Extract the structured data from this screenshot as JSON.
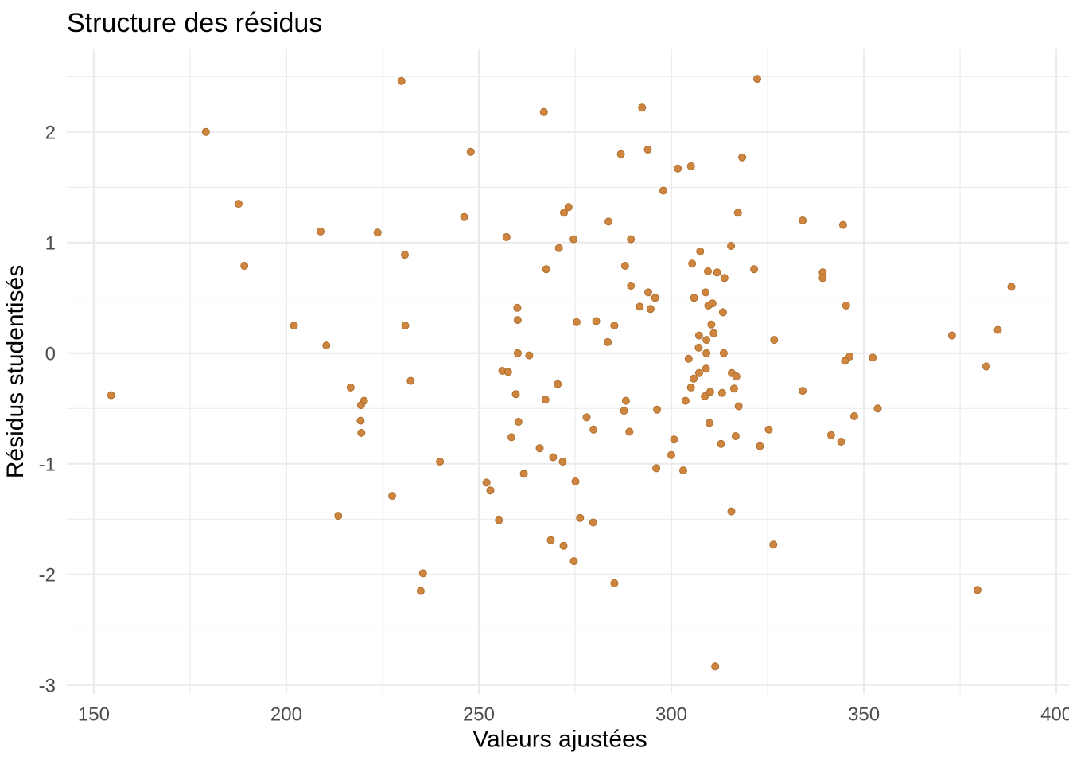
{
  "chart_data": {
    "type": "scatter",
    "title": "Structure des résidus",
    "xlabel": "Valeurs ajustées",
    "ylabel": "Résidus studentisés",
    "x_ticks": [
      150,
      200,
      250,
      300,
      350,
      400
    ],
    "x_minor_ticks": [
      175,
      225,
      275,
      325,
      375
    ],
    "y_ticks": [
      2,
      1,
      0,
      -1,
      -2,
      -3
    ],
    "y_minor_ticks": [
      2.5,
      1.5,
      0.5,
      -0.5,
      -1.5,
      -2.5
    ],
    "xlim": [
      143.0,
      403.3
    ],
    "ylim": [
      -3.08,
      2.75
    ],
    "grid": "on",
    "legend": "none",
    "point_color": "#CD853F",
    "point_edge_color": "#B06F2C",
    "grid_color": "#EBEBEB",
    "tick_label_color": "#4D4D4D",
    "title_color": "#000000",
    "axis_label_color": "#000000",
    "background_color": "#FFFFFF",
    "points": [
      [
        179.1,
        2.0
      ],
      [
        187.6,
        1.35
      ],
      [
        229.9,
        2.46
      ],
      [
        266.9,
        2.18
      ],
      [
        247.9,
        1.82
      ],
      [
        322.3,
        2.48
      ],
      [
        292.4,
        2.22
      ],
      [
        286.9,
        1.8
      ],
      [
        293.9,
        1.84
      ],
      [
        301.7,
        1.67
      ],
      [
        305.1,
        1.69
      ],
      [
        318.4,
        1.77
      ],
      [
        297.9,
        1.47
      ],
      [
        208.9,
        1.1
      ],
      [
        189.1,
        0.79
      ],
      [
        202.0,
        0.25
      ],
      [
        210.4,
        0.07
      ],
      [
        246.2,
        1.23
      ],
      [
        223.7,
        1.09
      ],
      [
        257.2,
        1.05
      ],
      [
        272.1,
        1.27
      ],
      [
        273.3,
        1.32
      ],
      [
        274.6,
        1.03
      ],
      [
        270.8,
        0.95
      ],
      [
        267.5,
        0.76
      ],
      [
        230.8,
        0.89
      ],
      [
        260.0,
        0.41
      ],
      [
        260.1,
        0.3
      ],
      [
        230.9,
        0.25
      ],
      [
        275.4,
        0.28
      ],
      [
        280.5,
        0.29
      ],
      [
        260.1,
        0.0
      ],
      [
        263.1,
        -0.02
      ],
      [
        317.3,
        1.27
      ],
      [
        283.7,
        1.19
      ],
      [
        334.1,
        1.2
      ],
      [
        344.6,
        1.16
      ],
      [
        289.5,
        1.03
      ],
      [
        315.5,
        0.97
      ],
      [
        307.5,
        0.92
      ],
      [
        305.4,
        0.81
      ],
      [
        288.0,
        0.79
      ],
      [
        309.5,
        0.74
      ],
      [
        311.9,
        0.73
      ],
      [
        313.8,
        0.68
      ],
      [
        321.5,
        0.76
      ],
      [
        339.3,
        0.73
      ],
      [
        339.3,
        0.68
      ],
      [
        289.5,
        0.61
      ],
      [
        294.0,
        0.55
      ],
      [
        295.8,
        0.5
      ],
      [
        308.9,
        0.55
      ],
      [
        305.9,
        0.5
      ],
      [
        291.8,
        0.42
      ],
      [
        294.6,
        0.4
      ],
      [
        309.6,
        0.43
      ],
      [
        310.7,
        0.45
      ],
      [
        313.4,
        0.37
      ],
      [
        345.4,
        0.43
      ],
      [
        285.2,
        0.25
      ],
      [
        310.4,
        0.26
      ],
      [
        311.0,
        0.18
      ],
      [
        283.5,
        0.1
      ],
      [
        307.2,
        0.16
      ],
      [
        309.1,
        0.12
      ],
      [
        326.7,
        0.12
      ],
      [
        307.1,
        0.05
      ],
      [
        309.1,
        0.0
      ],
      [
        313.6,
        0.0
      ],
      [
        304.5,
        -0.05
      ],
      [
        346.3,
        -0.03
      ],
      [
        345.1,
        -0.07
      ],
      [
        309.0,
        -0.14
      ],
      [
        307.2,
        -0.18
      ],
      [
        305.8,
        -0.23
      ],
      [
        315.7,
        -0.18
      ],
      [
        316.9,
        -0.21
      ],
      [
        388.3,
        0.6
      ],
      [
        372.9,
        0.16
      ],
      [
        384.8,
        0.21
      ],
      [
        352.3,
        -0.04
      ],
      [
        381.8,
        -0.12
      ],
      [
        154.5,
        -0.38
      ],
      [
        216.7,
        -0.31
      ],
      [
        232.3,
        -0.25
      ],
      [
        220.2,
        -0.43
      ],
      [
        219.4,
        -0.47
      ],
      [
        219.3,
        -0.61
      ],
      [
        219.5,
        -0.72
      ],
      [
        256.1,
        -0.16
      ],
      [
        257.6,
        -0.17
      ],
      [
        259.6,
        -0.37
      ],
      [
        270.5,
        -0.28
      ],
      [
        267.3,
        -0.42
      ],
      [
        260.3,
        -0.62
      ],
      [
        258.5,
        -0.76
      ],
      [
        278.0,
        -0.58
      ],
      [
        279.8,
        -0.69
      ],
      [
        265.8,
        -0.86
      ],
      [
        269.3,
        -0.94
      ],
      [
        271.8,
        -0.98
      ],
      [
        239.9,
        -0.98
      ],
      [
        261.7,
        -1.09
      ],
      [
        252.0,
        -1.17
      ],
      [
        253.0,
        -1.24
      ],
      [
        275.1,
        -1.16
      ],
      [
        227.5,
        -1.29
      ],
      [
        213.5,
        -1.47
      ],
      [
        255.2,
        -1.51
      ],
      [
        276.3,
        -1.49
      ],
      [
        279.7,
        -1.53
      ],
      [
        305.1,
        -0.31
      ],
      [
        303.7,
        -0.43
      ],
      [
        308.7,
        -0.39
      ],
      [
        310.1,
        -0.35
      ],
      [
        313.2,
        -0.36
      ],
      [
        316.3,
        -0.32
      ],
      [
        334.1,
        -0.34
      ],
      [
        288.2,
        -0.43
      ],
      [
        287.7,
        -0.52
      ],
      [
        296.3,
        -0.51
      ],
      [
        317.5,
        -0.48
      ],
      [
        347.5,
        -0.57
      ],
      [
        289.1,
        -0.71
      ],
      [
        309.9,
        -0.63
      ],
      [
        325.3,
        -0.69
      ],
      [
        316.7,
        -0.75
      ],
      [
        341.5,
        -0.74
      ],
      [
        344.1,
        -0.8
      ],
      [
        312.9,
        -0.82
      ],
      [
        323.0,
        -0.84
      ],
      [
        300.7,
        -0.78
      ],
      [
        300.0,
        -0.92
      ],
      [
        296.1,
        -1.04
      ],
      [
        303.1,
        -1.06
      ],
      [
        315.6,
        -1.43
      ],
      [
        353.6,
        -0.5
      ],
      [
        235.5,
        -1.99
      ],
      [
        234.9,
        -2.15
      ],
      [
        268.7,
        -1.69
      ],
      [
        272.0,
        -1.74
      ],
      [
        274.7,
        -1.88
      ],
      [
        326.5,
        -1.73
      ],
      [
        285.2,
        -2.08
      ],
      [
        311.4,
        -2.83
      ],
      [
        379.5,
        -2.14
      ]
    ]
  }
}
